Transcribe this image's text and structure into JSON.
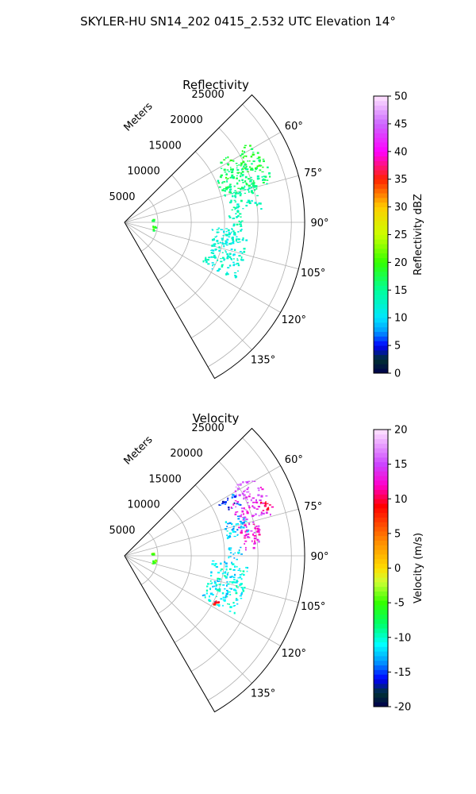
{
  "figure": {
    "suptitle": "SKYLER-HU  SN14_202  0415_2.532 UTC Elevation 14°"
  },
  "chart_data": [
    {
      "type": "heatmap",
      "title": "Reflectivity",
      "projection": "polar-sector",
      "azimuth_range_deg": [
        45,
        150
      ],
      "azimuth_ticks": [
        "60°",
        "75°",
        "90°",
        "105°",
        "120°",
        "135°"
      ],
      "range_label": "Meters",
      "range_ticks": [
        "5000",
        "10000",
        "15000",
        "20000",
        "25000"
      ],
      "rlim": [
        0,
        27000
      ],
      "grid": true,
      "colorbar": {
        "label": "Reflectivity dBZ",
        "range": [
          0,
          50
        ],
        "ticks": [
          "0",
          "5",
          "10",
          "15",
          "20",
          "25",
          "30",
          "35",
          "40",
          "45",
          "50"
        ]
      },
      "echo_regions": [
        {
          "az": [
            57,
            68
          ],
          "r": [
            16500,
            22500
          ],
          "value": 18
        },
        {
          "az": [
            63,
            75
          ],
          "r": [
            15000,
            23000
          ],
          "value": 16
        },
        {
          "az": [
            72,
            84
          ],
          "r": [
            16000,
            20500
          ],
          "value": 14
        },
        {
          "az": [
            84,
            92
          ],
          "r": [
            15500,
            17500
          ],
          "value": 14
        },
        {
          "az": [
            93,
            118
          ],
          "r": [
            13000,
            18500
          ],
          "value": 12
        },
        {
          "az": [
            83,
            86
          ],
          "r": [
            4000,
            4300
          ],
          "value": 19
        },
        {
          "az": [
            96,
            106
          ],
          "r": [
            4200,
            4600
          ],
          "value": 19
        }
      ]
    },
    {
      "type": "heatmap",
      "title": "Velocity",
      "projection": "polar-sector",
      "azimuth_range_deg": [
        45,
        150
      ],
      "azimuth_ticks": [
        "60°",
        "75°",
        "90°",
        "105°",
        "120°",
        "135°"
      ],
      "range_label": "Meters",
      "range_ticks": [
        "5000",
        "10000",
        "15000",
        "20000",
        "25000"
      ],
      "rlim": [
        0,
        27000
      ],
      "grid": true,
      "colorbar": {
        "label": "Velocity (m/s)",
        "range": [
          -20,
          20
        ],
        "ticks": [
          "-20",
          "-15",
          "-10",
          "-5",
          "0",
          "5",
          "10",
          "15",
          "20"
        ]
      },
      "echo_regions": [
        {
          "az": [
            57,
            63
          ],
          "r": [
            19000,
            22500
          ],
          "value": 16
        },
        {
          "az": [
            60,
            66
          ],
          "r": [
            16000,
            19000
          ],
          "value": -15
        },
        {
          "az": [
            63,
            74
          ],
          "r": [
            17500,
            23000
          ],
          "value": 14
        },
        {
          "az": [
            66,
            72
          ],
          "r": [
            21500,
            23200
          ],
          "value": 10
        },
        {
          "az": [
            70,
            80
          ],
          "r": [
            15500,
            19000
          ],
          "value": -12
        },
        {
          "az": [
            75,
            88
          ],
          "r": [
            17500,
            20500
          ],
          "value": 13
        },
        {
          "az": [
            84,
            92
          ],
          "r": [
            15500,
            17500
          ],
          "value": -12
        },
        {
          "az": [
            93,
            118
          ],
          "r": [
            13000,
            18500
          ],
          "value": -11
        },
        {
          "az": [
            116,
            119
          ],
          "r": [
            15000,
            15500
          ],
          "value": 8
        },
        {
          "az": [
            83,
            86
          ],
          "r": [
            4000,
            4300
          ],
          "value": -5
        },
        {
          "az": [
            96,
            106
          ],
          "r": [
            4200,
            4600
          ],
          "value": -5
        }
      ]
    }
  ]
}
